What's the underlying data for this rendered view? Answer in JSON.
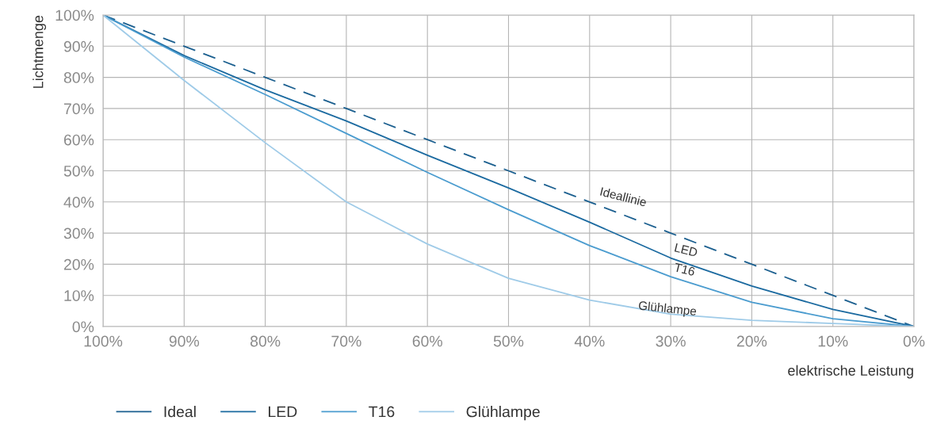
{
  "chart_data": {
    "type": "line",
    "xlabel": "elektrische Leistung",
    "ylabel": "Lichtmenge",
    "x": [
      100,
      90,
      80,
      70,
      60,
      50,
      40,
      30,
      20,
      10,
      0
    ],
    "series": [
      {
        "name": "Ideal",
        "color": "#1b5f8f",
        "line_style": "dashed",
        "values": [
          100,
          90,
          80,
          70,
          60,
          50,
          40,
          30,
          20,
          10,
          0
        ]
      },
      {
        "name": "LED",
        "color": "#1b6aa0",
        "values": [
          100,
          87,
          76,
          66,
          55,
          44.5,
          33.5,
          22,
          13,
          5.5,
          0
        ]
      },
      {
        "name": "T16",
        "color": "#4b9ccf",
        "values": [
          100,
          86.5,
          74.5,
          62,
          49.5,
          37.5,
          26,
          16,
          7.8,
          2.5,
          0
        ]
      },
      {
        "name": "Glühlampe",
        "color": "#9fcbe8",
        "values": [
          100,
          79,
          59,
          40,
          26.5,
          15.5,
          8.5,
          4,
          2,
          1,
          0
        ]
      }
    ],
    "xlim": [
      100,
      0
    ],
    "xticks": [
      {
        "value": 100,
        "label": "100%"
      },
      {
        "value": 90,
        "label": "90%"
      },
      {
        "value": 80,
        "label": "80%"
      },
      {
        "value": 70,
        "label": "70%"
      },
      {
        "value": 60,
        "label": "60%"
      },
      {
        "value": 50,
        "label": "50%"
      },
      {
        "value": 40,
        "label": "40%"
      },
      {
        "value": 30,
        "label": "30%"
      },
      {
        "value": 20,
        "label": "20%"
      },
      {
        "value": 10,
        "label": "10%"
      },
      {
        "value": 0,
        "label": "0%"
      }
    ],
    "ylim": [
      0,
      100
    ],
    "yticks": [
      {
        "value": 0,
        "label": "0%"
      },
      {
        "value": 10,
        "label": "10%"
      },
      {
        "value": 20,
        "label": "20%"
      },
      {
        "value": 30,
        "label": "30%"
      },
      {
        "value": 40,
        "label": "40%"
      },
      {
        "value": 50,
        "label": "50%"
      },
      {
        "value": 60,
        "label": "60%"
      },
      {
        "value": 70,
        "label": "70%"
      },
      {
        "value": 80,
        "label": "80%"
      },
      {
        "value": 90,
        "label": "90%"
      },
      {
        "value": 100,
        "label": "100%"
      }
    ],
    "annotations": [
      "Ideallinie",
      "LED",
      "T16",
      "Glühlampe"
    ],
    "grid": true,
    "legend": "bottom left",
    "marker": "none",
    "line_style": "solid"
  }
}
